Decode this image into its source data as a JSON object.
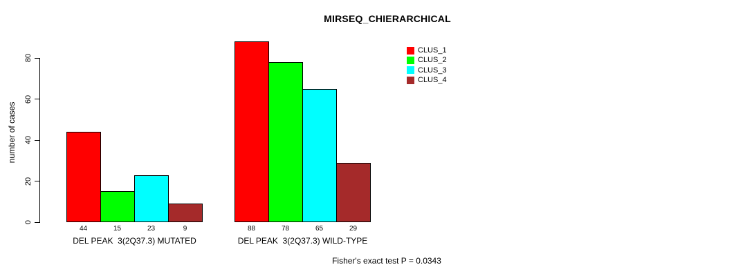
{
  "header": {
    "title": "MIRSEQ_CHIERARCHICAL"
  },
  "footer": {
    "note": "Fisher's exact test P = 0.0343"
  },
  "chart_data": {
    "type": "bar",
    "title": "MIRSEQ_CHIERARCHICAL",
    "xlabel": "",
    "ylabel": "number of cases",
    "ylim": [
      0,
      88
    ],
    "yticks": [
      0,
      20,
      40,
      60,
      80
    ],
    "grid": false,
    "bar_value_labels": true,
    "legend_position": "top-right-outside",
    "categories": [
      "DEL PEAK  3(2Q37.3) MUTATED",
      "DEL PEAK  3(2Q37.3) WILD-TYPE"
    ],
    "series": [
      {
        "name": "CLUS_1",
        "color": "#ff0000",
        "values": [
          44,
          88
        ]
      },
      {
        "name": "CLUS_2",
        "color": "#00ff00",
        "values": [
          15,
          78
        ]
      },
      {
        "name": "CLUS_3",
        "color": "#00ffff",
        "values": [
          23,
          65
        ]
      },
      {
        "name": "CLUS_4",
        "color": "#a52a2a",
        "values": [
          9,
          29
        ]
      }
    ],
    "annotation": "Fisher's exact test P = 0.0343"
  }
}
